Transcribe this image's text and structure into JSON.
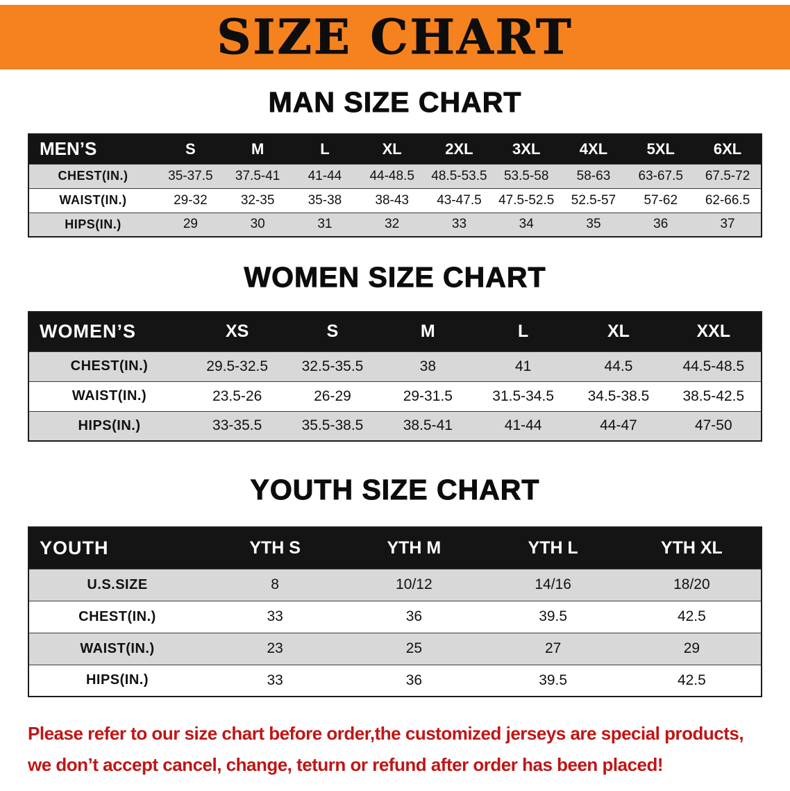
{
  "banner": {
    "title": "SIZE CHART"
  },
  "colors": {
    "banner_orange": "#f5821f",
    "footer_red": "#c01515",
    "table_header_black": "#141414",
    "row_gray": "#d8d8d8"
  },
  "sections": [
    {
      "heading": "MAN SIZE CHART",
      "table": {
        "header": [
          "MEN’S",
          "S",
          "M",
          "L",
          "XL",
          "2XL",
          "3XL",
          "4XL",
          "5XL",
          "6XL"
        ],
        "rows": [
          [
            "CHEST(IN.)",
            "35-37.5",
            "37.5-41",
            "41-44",
            "44-48.5",
            "48.5-53.5",
            "53.5-58",
            "58-63",
            "63-67.5",
            "67.5-72"
          ],
          [
            "WAIST(IN.)",
            "29-32",
            "32-35",
            "35-38",
            "38-43",
            "43-47.5",
            "47.5-52.5",
            "52.5-57",
            "57-62",
            "62-66.5"
          ],
          [
            "HIPS(IN.)",
            "29",
            "30",
            "31",
            "32",
            "33",
            "34",
            "35",
            "36",
            "37"
          ]
        ]
      }
    },
    {
      "heading": "WOMEN SIZE CHART",
      "table": {
        "header": [
          "WOMEN’S",
          "XS",
          "S",
          "M",
          "L",
          "XL",
          "XXL"
        ],
        "rows": [
          [
            "CHEST(IN.)",
            "29.5-32.5",
            "32.5-35.5",
            "38",
            "41",
            "44.5",
            "44.5-48.5"
          ],
          [
            "WAIST(IN.)",
            "23.5-26",
            "26-29",
            "29-31.5",
            "31.5-34.5",
            "34.5-38.5",
            "38.5-42.5"
          ],
          [
            "HIPS(IN.)",
            "33-35.5",
            "35.5-38.5",
            "38.5-41",
            "41-44",
            "44-47",
            "47-50"
          ]
        ]
      }
    },
    {
      "heading": "YOUTH SIZE CHART",
      "table": {
        "header": [
          "YOUTH",
          "YTH S",
          "YTH M",
          "YTH L",
          "YTH XL"
        ],
        "rows": [
          [
            "U.S.SIZE",
            "8",
            "10/12",
            "14/16",
            "18/20"
          ],
          [
            "CHEST(IN.)",
            "33",
            "36",
            "39.5",
            "42.5"
          ],
          [
            "WAIST(IN.)",
            "23",
            "25",
            "27",
            "29"
          ],
          [
            "HIPS(IN.)",
            "33",
            "36",
            "39.5",
            "42.5"
          ]
        ]
      }
    }
  ],
  "footer": {
    "line1": "Please refer to our size chart before order,the customized jerseys are special products,",
    "line2": "we don’t accept cancel, change, teturn or refund after order has been placed!"
  }
}
